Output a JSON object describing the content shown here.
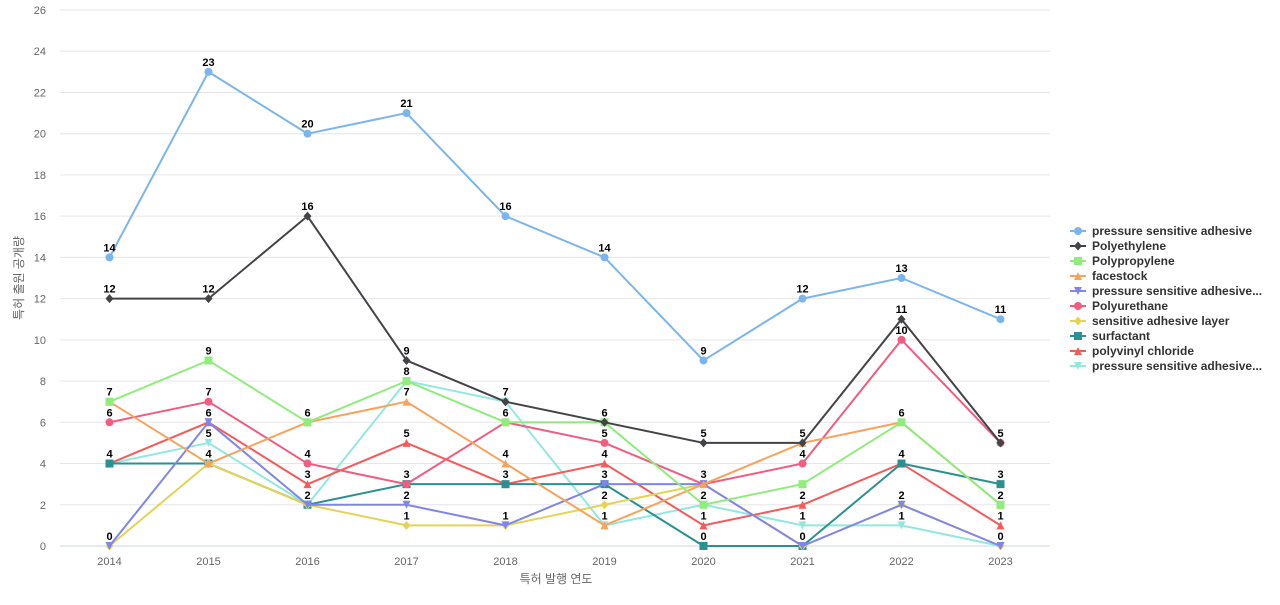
{
  "chart_data": {
    "type": "line",
    "title": "",
    "xlabel": "특허 발행 연도",
    "ylabel": "특허 출원 공개량",
    "x": [
      "2014",
      "2015",
      "2016",
      "2017",
      "2018",
      "2019",
      "2020",
      "2021",
      "2022",
      "2023"
    ],
    "ylim": [
      0,
      26
    ],
    "yticks": [
      "0",
      "2",
      "4",
      "6",
      "8",
      "10",
      "12",
      "14",
      "16",
      "18",
      "20",
      "22",
      "24",
      "26"
    ],
    "grid": true,
    "legend_position": "right",
    "series": [
      {
        "name": "pressure sensitive adhesive",
        "color": "#7cb5ec",
        "marker": "circle",
        "values": [
          14,
          23,
          20,
          21,
          16,
          14,
          9,
          12,
          13,
          11
        ]
      },
      {
        "name": "Polyethylene",
        "color": "#434348",
        "marker": "diamond",
        "values": [
          12,
          12,
          16,
          9,
          7,
          6,
          5,
          5,
          11,
          5
        ]
      },
      {
        "name": "Polypropylene",
        "color": "#90ed7d",
        "marker": "square",
        "values": [
          7,
          9,
          6,
          8,
          6,
          6,
          2,
          3,
          6,
          2
        ]
      },
      {
        "name": "facestock",
        "color": "#f7a35c",
        "marker": "triangle",
        "values": [
          7,
          4,
          6,
          7,
          4,
          1,
          3,
          5,
          6,
          2
        ]
      },
      {
        "name": "pressure sensitive adhesive...",
        "color": "#8085e9",
        "marker": "triangle-down",
        "values": [
          0,
          6,
          2,
          2,
          1,
          3,
          3,
          0,
          2,
          0
        ]
      },
      {
        "name": "Polyurethane",
        "color": "#f15c80",
        "marker": "circle",
        "values": [
          6,
          7,
          4,
          3,
          6,
          5,
          3,
          4,
          10,
          5
        ]
      },
      {
        "name": "sensitive adhesive layer",
        "color": "#e4d354",
        "marker": "diamond",
        "values": [
          0,
          4,
          2,
          1,
          1,
          2,
          3,
          0,
          2,
          0
        ]
      },
      {
        "name": "surfactant",
        "color": "#2b908f",
        "marker": "square",
        "values": [
          4,
          4,
          2,
          3,
          3,
          3,
          0,
          0,
          4,
          3
        ]
      },
      {
        "name": "polyvinyl chloride",
        "color": "#f45b5b",
        "marker": "triangle",
        "values": [
          4,
          6,
          3,
          5,
          3,
          4,
          1,
          2,
          4,
          1
        ]
      },
      {
        "name": "pressure sensitive adhesive...",
        "color": "#91e8e1",
        "marker": "triangle-down",
        "values": [
          4,
          5,
          2,
          8,
          7,
          1,
          2,
          1,
          1,
          0
        ]
      }
    ],
    "data_labels": [
      {
        "x": "2014",
        "value": "14"
      },
      {
        "x": "2014",
        "value": "12"
      },
      {
        "x": "2014",
        "value": "7"
      },
      {
        "x": "2014",
        "value": "6"
      },
      {
        "x": "2014",
        "value": "4"
      },
      {
        "x": "2014",
        "value": "0"
      },
      {
        "x": "2015",
        "value": "23"
      },
      {
        "x": "2015",
        "value": "12"
      },
      {
        "x": "2015",
        "value": "9"
      },
      {
        "x": "2015",
        "value": "7"
      },
      {
        "x": "2015",
        "value": "6"
      },
      {
        "x": "2015",
        "value": "5"
      },
      {
        "x": "2015",
        "value": "4"
      },
      {
        "x": "2016",
        "value": "20"
      },
      {
        "x": "2016",
        "value": "16"
      },
      {
        "x": "2016",
        "value": "6"
      },
      {
        "x": "2016",
        "value": "4"
      },
      {
        "x": "2016",
        "value": "3"
      },
      {
        "x": "2016",
        "value": "2"
      },
      {
        "x": "2017",
        "value": "21"
      },
      {
        "x": "2017",
        "value": "9"
      },
      {
        "x": "2017",
        "value": "8"
      },
      {
        "x": "2017",
        "value": "7"
      },
      {
        "x": "2017",
        "value": "5"
      },
      {
        "x": "2017",
        "value": "3"
      },
      {
        "x": "2017",
        "value": "2"
      },
      {
        "x": "2017",
        "value": "1"
      },
      {
        "x": "2018",
        "value": "16"
      },
      {
        "x": "2018",
        "value": "7"
      },
      {
        "x": "2018",
        "value": "6"
      },
      {
        "x": "2018",
        "value": "4"
      },
      {
        "x": "2018",
        "value": "3"
      },
      {
        "x": "2018",
        "value": "1"
      },
      {
        "x": "2019",
        "value": "14"
      },
      {
        "x": "2019",
        "value": "6"
      },
      {
        "x": "2019",
        "value": "5"
      },
      {
        "x": "2019",
        "value": "4"
      },
      {
        "x": "2019",
        "value": "3"
      },
      {
        "x": "2019",
        "value": "2"
      },
      {
        "x": "2019",
        "value": "1"
      },
      {
        "x": "2020",
        "value": "9"
      },
      {
        "x": "2020",
        "value": "5"
      },
      {
        "x": "2020",
        "value": "3"
      },
      {
        "x": "2020",
        "value": "2"
      },
      {
        "x": "2020",
        "value": "1"
      },
      {
        "x": "2020",
        "value": "0"
      },
      {
        "x": "2021",
        "value": "12"
      },
      {
        "x": "2021",
        "value": "5"
      },
      {
        "x": "2021",
        "value": "4"
      },
      {
        "x": "2021",
        "value": "2"
      },
      {
        "x": "2021",
        "value": "1"
      },
      {
        "x": "2021",
        "value": "0"
      },
      {
        "x": "2022",
        "value": "13"
      },
      {
        "x": "2022",
        "value": "11"
      },
      {
        "x": "2022",
        "value": "10"
      },
      {
        "x": "2022",
        "value": "6"
      },
      {
        "x": "2022",
        "value": "4"
      },
      {
        "x": "2022",
        "value": "2"
      },
      {
        "x": "2022",
        "value": "1"
      },
      {
        "x": "2023",
        "value": "11"
      },
      {
        "x": "2023",
        "value": "5"
      },
      {
        "x": "2023",
        "value": "3"
      },
      {
        "x": "2023",
        "value": "2"
      },
      {
        "x": "2023",
        "value": "1"
      },
      {
        "x": "2023",
        "value": "0"
      }
    ]
  }
}
